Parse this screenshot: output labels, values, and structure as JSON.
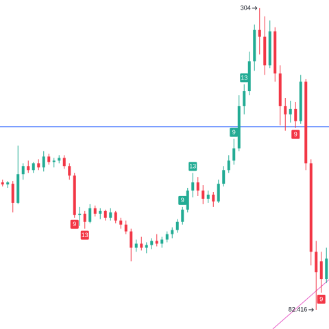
{
  "chart_data": {
    "type": "candlestick",
    "up_color": "#22ab94",
    "down_color": "#f23645",
    "ylim": [
      68.3,
      310
    ],
    "hline": 216.9,
    "hline_color": "#2962ff",
    "open": [
      176,
      174.5,
      175,
      161,
      182,
      188,
      185,
      190,
      187,
      195,
      191,
      192,
      194,
      188,
      181,
      152,
      153,
      147,
      157,
      153,
      155,
      150,
      154,
      148,
      145,
      140,
      128,
      131,
      128,
      130,
      133,
      131,
      134,
      138,
      141,
      147,
      156,
      170,
      176,
      170,
      164,
      167,
      162,
      175,
      185,
      192,
      201,
      232,
      243,
      265,
      288,
      283,
      262,
      287,
      256,
      232,
      226,
      230,
      221,
      250,
      190,
      125,
      118,
      105
    ],
    "high": [
      178,
      177,
      177,
      203,
      190,
      192,
      191,
      193,
      199,
      197,
      194,
      196,
      196,
      190,
      183,
      158,
      155,
      160,
      159,
      157,
      156,
      157,
      155,
      150,
      148,
      142,
      134,
      136,
      132,
      135,
      138,
      136,
      140,
      143,
      149,
      158,
      172,
      183,
      180,
      174,
      170,
      169,
      178,
      188,
      196,
      208,
      240,
      248,
      272,
      292,
      304,
      298,
      295,
      290,
      262,
      238,
      236,
      235,
      255,
      252,
      193,
      133,
      125,
      128
    ],
    "low": [
      173,
      172,
      154,
      160,
      178,
      183,
      183,
      185,
      184,
      189,
      187,
      190,
      186,
      178,
      150,
      144,
      142,
      146,
      151,
      149,
      148,
      148,
      146,
      142,
      138,
      118,
      125,
      126,
      124,
      127,
      129,
      128,
      132,
      135,
      139,
      145,
      154,
      165,
      166,
      160,
      161,
      158,
      161,
      173,
      183,
      189,
      199,
      226,
      240,
      258,
      270,
      255,
      260,
      250,
      218,
      214,
      220,
      216,
      219,
      185,
      115,
      82.416,
      95,
      102
    ],
    "close": [
      174.5,
      176,
      161,
      182,
      188,
      185,
      190,
      187,
      195,
      191,
      192,
      194,
      188,
      181,
      152,
      153,
      147,
      157,
      153,
      155,
      150,
      154,
      148,
      145,
      140,
      128,
      131,
      128,
      130,
      133,
      131,
      134,
      138,
      141,
      147,
      156,
      170,
      176,
      170,
      164,
      167,
      162,
      175,
      185,
      192,
      201,
      232,
      243,
      265,
      288,
      283,
      262,
      287,
      256,
      232,
      226,
      230,
      221,
      250,
      190,
      125,
      110,
      105,
      120
    ],
    "markers": [
      null,
      null,
      null,
      null,
      null,
      null,
      null,
      null,
      null,
      null,
      null,
      null,
      null,
      null,
      "9",
      null,
      "13",
      null,
      null,
      null,
      null,
      null,
      null,
      null,
      null,
      null,
      null,
      null,
      null,
      null,
      null,
      null,
      null,
      null,
      null,
      "9",
      null,
      "13",
      null,
      null,
      null,
      null,
      null,
      null,
      null,
      "9",
      null,
      "13",
      null,
      null,
      null,
      null,
      null,
      null,
      null,
      null,
      null,
      "9",
      null,
      null,
      null,
      null,
      "9",
      null
    ],
    "high_label_index": 50,
    "low_label_index": 61
  }
}
